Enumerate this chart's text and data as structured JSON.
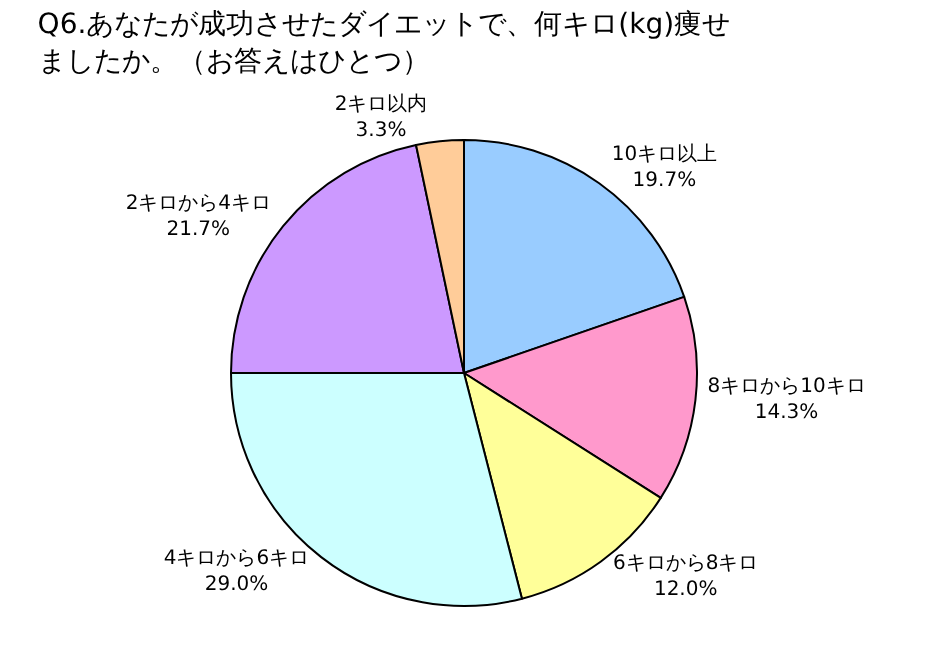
{
  "chart_data": {
    "type": "pie",
    "title": "Q6.あなたが成功させたダイエットで、何キロ(kg)痩せましたか。（お答えはひとつ）",
    "categories": [
      "10キロ以上",
      "8キロから10キロ",
      "6キロから8キロ",
      "4キロから6キロ",
      "2キロから4キロ",
      "2キロ以内"
    ],
    "values": [
      19.7,
      14.3,
      12.0,
      29.0,
      21.7,
      3.3
    ],
    "value_labels": [
      "19.7%",
      "14.3%",
      "12.0%",
      "29.0%",
      "21.7%",
      "3.3%"
    ],
    "colors": [
      "#99ccff",
      "#ff99cc",
      "#ffff99",
      "#ccffff",
      "#cc99ff",
      "#ffcc99"
    ],
    "legend": false
  }
}
